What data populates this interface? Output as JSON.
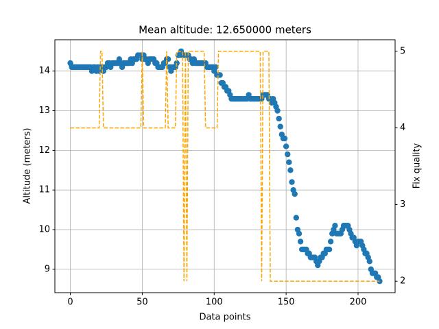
{
  "chart_data": {
    "type": "combo",
    "title": "Mean altitude: 12.650000 meters",
    "xlabel": "Data points",
    "ylabel": "Altitude (meters)",
    "y2label": "Fix quality",
    "xlim": [
      -10.75,
      225.75
    ],
    "xticks": [
      0,
      50,
      100,
      150,
      200
    ],
    "ylim": [
      8.41,
      14.79
    ],
    "yticks": [
      9,
      10,
      11,
      12,
      13,
      14
    ],
    "y2lim": [
      1.85,
      5.15
    ],
    "y2ticks": [
      2,
      3,
      4,
      5
    ],
    "grid": true,
    "x": [
      0,
      1,
      2,
      3,
      4,
      5,
      6,
      7,
      8,
      9,
      10,
      11,
      12,
      13,
      14,
      15,
      16,
      17,
      18,
      19,
      20,
      21,
      22,
      23,
      24,
      25,
      26,
      27,
      28,
      29,
      30,
      31,
      32,
      33,
      34,
      35,
      36,
      37,
      38,
      39,
      40,
      41,
      42,
      43,
      44,
      45,
      46,
      47,
      48,
      49,
      50,
      51,
      52,
      53,
      54,
      55,
      56,
      57,
      58,
      59,
      60,
      61,
      62,
      63,
      64,
      65,
      66,
      67,
      68,
      69,
      70,
      71,
      72,
      73,
      74,
      75,
      76,
      77,
      78,
      79,
      80,
      81,
      82,
      83,
      84,
      85,
      86,
      87,
      88,
      89,
      90,
      91,
      92,
      93,
      94,
      95,
      96,
      97,
      98,
      99,
      100,
      101,
      102,
      103,
      104,
      105,
      106,
      107,
      108,
      109,
      110,
      111,
      112,
      113,
      114,
      115,
      116,
      117,
      118,
      119,
      120,
      121,
      122,
      123,
      124,
      125,
      126,
      127,
      128,
      129,
      130,
      131,
      132,
      133,
      134,
      135,
      136,
      137,
      138,
      139,
      140,
      141,
      142,
      143,
      144,
      145,
      146,
      147,
      148,
      149,
      150,
      151,
      152,
      153,
      154,
      155,
      156,
      157,
      158,
      159,
      160,
      161,
      162,
      163,
      164,
      165,
      166,
      167,
      168,
      169,
      170,
      171,
      172,
      173,
      174,
      175,
      176,
      177,
      178,
      179,
      180,
      181,
      182,
      183,
      184,
      185,
      186,
      187,
      188,
      189,
      190,
      191,
      192,
      193,
      194,
      195,
      196,
      197,
      198,
      199,
      200,
      201,
      202,
      203,
      204,
      205,
      206,
      207,
      208,
      209,
      210,
      211,
      212,
      213,
      214,
      215
    ],
    "series": [
      {
        "type": "scatter",
        "color": "#1f77b4",
        "axis": "y",
        "values": [
          14.2,
          14.1,
          14.1,
          14.1,
          14.1,
          14.1,
          14.1,
          14.1,
          14.1,
          14.1,
          14.1,
          14.1,
          14.1,
          14.1,
          14.1,
          14.0,
          14.1,
          14.1,
          14.0,
          14.1,
          14.0,
          14.1,
          14.1,
          14.0,
          14.1,
          14.1,
          14.2,
          14.2,
          14.1,
          14.2,
          14.2,
          14.2,
          14.2,
          14.2,
          14.3,
          14.2,
          14.1,
          14.2,
          14.2,
          14.2,
          14.2,
          14.2,
          14.3,
          14.2,
          14.3,
          14.3,
          14.3,
          14.4,
          14.4,
          14.4,
          14.3,
          14.4,
          14.3,
          14.3,
          14.2,
          14.3,
          14.3,
          14.3,
          14.3,
          14.2,
          14.2,
          14.1,
          14.1,
          14.1,
          14.1,
          14.2,
          14.2,
          14.3,
          14.3,
          14.1,
          14.0,
          14.1,
          14.1,
          14.1,
          14.2,
          14.4,
          14.4,
          14.5,
          14.4,
          14.4,
          14.4,
          14.4,
          14.4,
          14.3,
          14.3,
          14.2,
          14.3,
          14.2,
          14.2,
          14.2,
          14.2,
          14.2,
          14.2,
          14.2,
          14.2,
          14.1,
          14.1,
          14.1,
          14.1,
          14.1,
          14.0,
          14.1,
          13.9,
          13.9,
          13.9,
          13.7,
          13.7,
          13.6,
          13.6,
          13.5,
          13.5,
          13.4,
          13.3,
          13.3,
          13.3,
          13.3,
          13.3,
          13.3,
          13.3,
          13.3,
          13.3,
          13.3,
          13.3,
          13.3,
          13.4,
          13.3,
          13.3,
          13.3,
          13.3,
          13.3,
          13.3,
          13.3,
          13.3,
          13.3,
          13.4,
          13.4,
          13.4,
          13.4,
          13.3,
          13.3,
          13.2,
          13.3,
          13.2,
          13.1,
          13.0,
          12.8,
          12.6,
          12.4,
          12.3,
          12.3,
          12.1,
          11.9,
          11.7,
          11.5,
          11.2,
          11.0,
          10.9,
          10.3,
          10.0,
          9.9,
          9.7,
          9.5,
          9.5,
          9.5,
          9.5,
          9.4,
          9.4,
          9.3,
          9.3,
          9.3,
          9.3,
          9.2,
          9.1,
          9.2,
          9.3,
          9.3,
          9.4,
          9.4,
          9.5,
          9.5,
          9.5,
          9.7,
          9.9,
          10.0,
          10.1,
          9.9,
          9.9,
          9.9,
          9.9,
          10.0,
          10.1,
          10.1,
          10.1,
          10.1,
          10.0,
          9.9,
          9.8,
          9.8,
          9.7,
          9.6,
          9.7,
          9.7,
          9.7,
          9.6,
          9.5,
          9.4,
          9.4,
          9.3,
          9.2,
          9.0,
          8.9,
          8.9,
          8.9,
          8.8,
          8.8,
          8.7
        ]
      },
      {
        "type": "line",
        "linestyle": "dashed",
        "color": "#ffa500",
        "axis": "y2",
        "values": [
          4,
          4,
          4,
          4,
          4,
          4,
          4,
          4,
          4,
          4,
          4,
          4,
          4,
          4,
          4,
          4,
          4,
          4,
          4,
          4,
          4,
          5,
          5,
          4,
          4,
          4,
          4,
          4,
          4,
          4,
          4,
          4,
          4,
          4,
          4,
          4,
          4,
          4,
          4,
          4,
          4,
          4,
          4,
          4,
          4,
          4,
          4,
          4,
          4,
          4,
          5,
          4,
          4,
          4,
          4,
          4,
          4,
          4,
          4,
          4,
          4,
          4,
          4,
          4,
          4,
          4,
          4,
          5,
          4,
          4,
          4,
          4,
          4,
          4,
          5,
          5,
          5,
          5,
          5,
          2,
          5,
          2,
          5,
          5,
          5,
          5,
          5,
          5,
          5,
          5,
          5,
          5,
          5,
          5,
          4,
          4,
          4,
          4,
          4,
          4,
          4,
          4,
          4,
          5,
          5,
          5,
          5,
          5,
          5,
          5,
          5,
          5,
          5,
          5,
          5,
          5,
          5,
          5,
          5,
          5,
          5,
          5,
          5,
          5,
          5,
          5,
          5,
          5,
          5,
          5,
          5,
          5,
          5,
          2,
          5,
          5,
          5,
          5,
          5,
          2,
          2,
          2,
          2,
          2,
          2,
          2,
          2,
          2,
          2,
          2,
          2,
          2,
          2,
          2,
          2,
          2,
          2,
          2,
          2,
          2,
          2,
          2,
          2,
          2,
          2,
          2,
          2,
          2,
          2,
          2,
          2,
          2,
          2,
          2,
          2,
          2,
          2,
          2,
          2,
          2,
          2,
          2,
          2,
          2,
          2,
          2,
          2,
          2,
          2,
          2,
          2,
          2,
          2,
          2,
          2,
          2,
          2,
          2,
          2,
          2,
          2,
          2,
          2,
          2,
          2,
          2,
          2,
          2,
          2,
          2,
          2,
          2,
          2,
          2,
          2,
          2
        ]
      }
    ]
  }
}
